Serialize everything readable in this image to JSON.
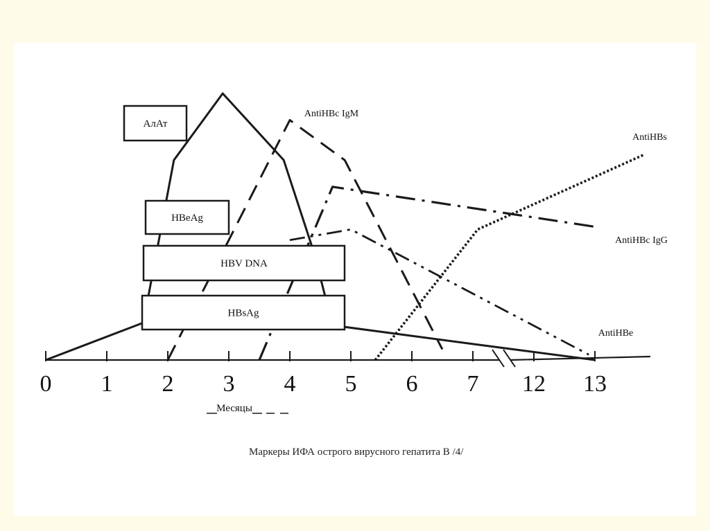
{
  "caption": "Маркеры ИФА острого вирусного гепатита В /4/",
  "chart_data": {
    "type": "line",
    "title": "",
    "xlabel": "Месяцы",
    "ylabel": "",
    "x_ticks": [
      "0",
      "1",
      "2",
      "3",
      "4",
      "5",
      "6",
      "7",
      "12",
      "13"
    ],
    "axis_break": "between 7 and 12",
    "background": "#ffffff",
    "line_color": "#1a1a1a",
    "boxes": [
      {
        "name": "АлАт"
      },
      {
        "name": "HBeAg"
      },
      {
        "name": "HBV DNA"
      },
      {
        "name": "HBsAg"
      }
    ],
    "series": [
      {
        "name": "",
        "style": "solid",
        "points": [
          [
            0.0,
            0.0
          ],
          [
            1.6,
            0.14
          ],
          [
            2.1,
            0.75
          ],
          [
            2.9,
            1.0
          ],
          [
            3.9,
            0.75
          ],
          [
            4.4,
            0.4
          ],
          [
            4.7,
            0.13
          ],
          [
            7.0,
            0.06
          ],
          [
            13.0,
            0.0
          ]
        ]
      },
      {
        "name": "AntiHBc IgM",
        "style": "dashed",
        "points": [
          [
            2.0,
            0.0
          ],
          [
            4.0,
            0.9
          ],
          [
            4.9,
            0.75
          ],
          [
            6.5,
            0.04
          ]
        ]
      },
      {
        "name": "AntiHBc IgG",
        "style": "dash-dot",
        "points": [
          [
            3.5,
            0.0
          ],
          [
            4.7,
            0.65
          ],
          [
            13.0,
            0.5
          ]
        ]
      },
      {
        "name": "AntiHBe",
        "style": "dash-dot-dot",
        "points": [
          [
            4.0,
            0.45
          ],
          [
            5.0,
            0.49
          ],
          [
            12.9,
            0.02
          ]
        ]
      },
      {
        "name": "AntiHBs",
        "style": "dotted",
        "points": [
          [
            5.4,
            0.0
          ],
          [
            7.4,
            0.49
          ],
          [
            13.8,
            0.77
          ]
        ]
      }
    ]
  }
}
